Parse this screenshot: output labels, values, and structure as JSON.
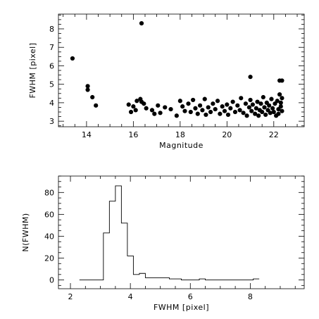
{
  "chart_data": [
    {
      "type": "scatter",
      "xlabel": "Magnitude",
      "ylabel": "FWHM  [pixel]",
      "xlim": [
        12.8,
        23.3
      ],
      "ylim": [
        2.7,
        8.8
      ],
      "xticks": [
        14,
        16,
        18,
        20,
        22
      ],
      "yticks": [
        3,
        4,
        5,
        6,
        7,
        8
      ],
      "grid": false,
      "points": [
        [
          13.4,
          6.4
        ],
        [
          14.05,
          4.9
        ],
        [
          14.05,
          4.7
        ],
        [
          14.25,
          4.3
        ],
        [
          14.4,
          3.85
        ],
        [
          16.35,
          8.3
        ],
        [
          21.0,
          5.4
        ],
        [
          22.25,
          5.2
        ],
        [
          22.35,
          5.2
        ],
        [
          15.8,
          3.9
        ],
        [
          15.9,
          3.5
        ],
        [
          16.0,
          3.8
        ],
        [
          16.1,
          3.6
        ],
        [
          16.15,
          4.1
        ],
        [
          16.3,
          4.2
        ],
        [
          16.35,
          4.05
        ],
        [
          16.45,
          3.95
        ],
        [
          16.55,
          3.7
        ],
        [
          16.8,
          3.6
        ],
        [
          16.9,
          3.4
        ],
        [
          17.05,
          3.85
        ],
        [
          17.15,
          3.45
        ],
        [
          17.35,
          3.75
        ],
        [
          17.6,
          3.65
        ],
        [
          17.85,
          3.3
        ],
        [
          18.0,
          4.1
        ],
        [
          18.1,
          3.8
        ],
        [
          18.2,
          3.55
        ],
        [
          18.35,
          3.95
        ],
        [
          18.45,
          3.5
        ],
        [
          18.55,
          4.15
        ],
        [
          18.65,
          3.7
        ],
        [
          18.75,
          3.4
        ],
        [
          18.85,
          3.85
        ],
        [
          18.95,
          3.6
        ],
        [
          19.05,
          4.2
        ],
        [
          19.1,
          3.35
        ],
        [
          19.2,
          3.75
        ],
        [
          19.3,
          3.5
        ],
        [
          19.4,
          3.95
        ],
        [
          19.5,
          3.65
        ],
        [
          19.6,
          4.1
        ],
        [
          19.7,
          3.4
        ],
        [
          19.8,
          3.8
        ],
        [
          19.9,
          3.55
        ],
        [
          20.0,
          3.9
        ],
        [
          20.05,
          3.35
        ],
        [
          20.15,
          3.7
        ],
        [
          20.25,
          4.05
        ],
        [
          20.35,
          3.5
        ],
        [
          20.45,
          3.85
        ],
        [
          20.55,
          3.6
        ],
        [
          20.6,
          4.25
        ],
        [
          20.7,
          3.45
        ],
        [
          20.8,
          3.95
        ],
        [
          20.85,
          3.3
        ],
        [
          20.95,
          3.75
        ],
        [
          21.0,
          4.15
        ],
        [
          21.05,
          3.55
        ],
        [
          21.1,
          3.9
        ],
        [
          21.2,
          3.4
        ],
        [
          21.25,
          3.7
        ],
        [
          21.3,
          4.05
        ],
        [
          21.35,
          3.3
        ],
        [
          21.4,
          3.6
        ],
        [
          21.45,
          3.95
        ],
        [
          21.5,
          3.5
        ],
        [
          21.55,
          4.3
        ],
        [
          21.6,
          3.75
        ],
        [
          21.65,
          3.35
        ],
        [
          21.7,
          4.0
        ],
        [
          21.75,
          3.6
        ],
        [
          21.8,
          3.85
        ],
        [
          21.85,
          3.45
        ],
        [
          21.9,
          4.2
        ],
        [
          21.95,
          3.7
        ],
        [
          22.0,
          3.5
        ],
        [
          22.05,
          3.95
        ],
        [
          22.1,
          3.3
        ],
        [
          22.15,
          4.1
        ],
        [
          22.2,
          3.65
        ],
        [
          22.25,
          4.45
        ],
        [
          22.3,
          3.8
        ],
        [
          22.35,
          3.55
        ],
        [
          22.35,
          4.25
        ],
        [
          22.3,
          4.0
        ],
        [
          22.2,
          3.4
        ]
      ]
    },
    {
      "type": "histogram",
      "xlabel": "FWHM  [pixel]",
      "ylabel": "N(FWHM)",
      "xlim": [
        1.6,
        9.8
      ],
      "ylim": [
        -8,
        95
      ],
      "xticks": [
        2,
        4,
        6,
        8
      ],
      "yticks": [
        0,
        20,
        40,
        60,
        80
      ],
      "grid": false,
      "bin_width": 0.2,
      "bin_edges": [
        2.3,
        2.5,
        2.7,
        2.9,
        3.1,
        3.3,
        3.5,
        3.7,
        3.9,
        4.1,
        4.3,
        4.5,
        4.7,
        4.9,
        5.1,
        5.3,
        5.5,
        5.7,
        5.9,
        6.1,
        6.3,
        6.5,
        6.7,
        6.9,
        7.1,
        7.3,
        7.5,
        7.7,
        7.9,
        8.1,
        8.3
      ],
      "counts": [
        0,
        0,
        0,
        0,
        43,
        72,
        86,
        52,
        22,
        5,
        6,
        2,
        2,
        2,
        2,
        1,
        1,
        0,
        0,
        0,
        1,
        0,
        0,
        0,
        0,
        0,
        0,
        0,
        0,
        1
      ]
    }
  ]
}
